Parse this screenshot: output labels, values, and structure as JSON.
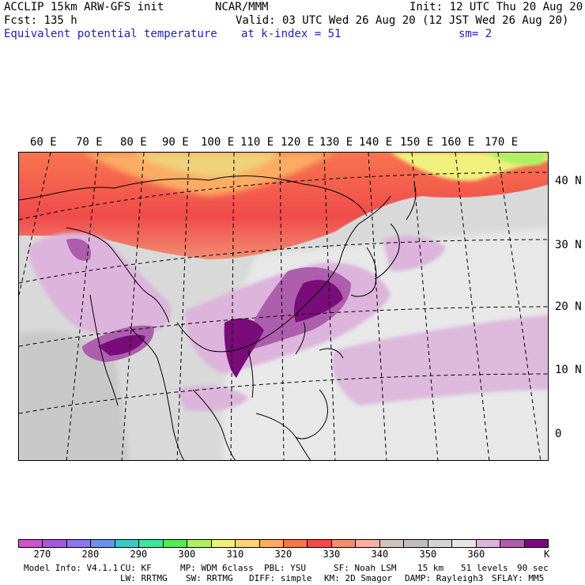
{
  "header": {
    "line1_left": "ACCLIP 15km ARW-GFS init",
    "line1_center": "NCAR/MMM",
    "line1_right": "Init: 12 UTC Thu 20 Aug 20",
    "line2_left": "Fcst:  135 h",
    "line2_right": "Valid: 03 UTC Wed 26 Aug 20 (12 JST Wed 26 Aug 20)",
    "line3_field": "Equivalent potential temperature",
    "line3_level": "at k-index =  51",
    "line3_smooth": "sm= 2"
  },
  "map": {
    "lon_labels": [
      "60 E",
      "70 E",
      "80 E",
      "90 E",
      "100 E",
      "110 E",
      "120 E",
      "130 E",
      "140 E",
      "150 E",
      "160 E",
      "170 E"
    ],
    "lat_labels": [
      "40 N",
      "30 N",
      "20 N",
      "10 N",
      "0"
    ]
  },
  "colorbar": {
    "colors": [
      "#c65ac6",
      "#a25ad8",
      "#8b78e6",
      "#6c93e6",
      "#3cc8c8",
      "#3ce69b",
      "#5ae65a",
      "#aef064",
      "#f0f07c",
      "#fcd27a",
      "#fbac64",
      "#f7754f",
      "#f04b4b",
      "#f08e72",
      "#f4b39c",
      "#d2c4bc",
      "#bfbfbf",
      "#d4d4d4",
      "#e6e6e6",
      "#dcb4dc",
      "#ad5ead",
      "#7a0c7a"
    ],
    "labels": [
      "270",
      "280",
      "290",
      "300",
      "310",
      "320",
      "330",
      "340",
      "350",
      "360"
    ],
    "unit": "K"
  },
  "footer": {
    "model_info": "Model Info: V4.1.1",
    "cu": "CU: KF",
    "mp": "MP: WDM 6class",
    "pbl": "PBL: YSU",
    "sf": "SF: Noah LSM",
    "res": "15 km",
    "levels": "51 levels",
    "dt": "90 sec",
    "lw": "LW: RRTMG",
    "sw": "SW: RRTMG",
    "diff": "DIFF: simple",
    "km": "KM: 2D Smagor",
    "damp": "DAMP: Rayleigh3",
    "sflay": "SFLAY: MM5"
  }
}
